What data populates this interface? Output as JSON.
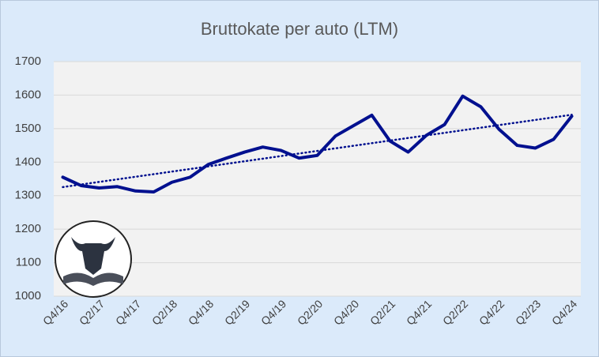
{
  "chart_data": {
    "type": "line",
    "title": "Bruttokate per auto (LTM)",
    "categories": [
      "Q4/16",
      null,
      "Q2/17",
      null,
      "Q4/17",
      null,
      "Q2/18",
      null,
      "Q4/18",
      null,
      "Q2/19",
      null,
      "Q4/19",
      null,
      "Q2/20",
      null,
      "Q4/20",
      null,
      "Q2/21",
      null,
      "Q4/21",
      null,
      "Q2/22",
      null,
      "Q4/22",
      null,
      "Q2/23",
      null,
      "Q4/24"
    ],
    "series": [
      {
        "name": "Bruttokate per auto",
        "color": "#00108f",
        "values": [
          1355,
          1330,
          1323,
          1327,
          1314,
          1311,
          1340,
          1355,
          1393,
          1412,
          1430,
          1445,
          1435,
          1412,
          1420,
          1478,
          1509,
          1540,
          1463,
          1430,
          1480,
          1512,
          1597,
          1565,
          1498,
          1450,
          1442,
          1468,
          1537
        ]
      }
    ],
    "ylim": [
      1000,
      1700
    ],
    "yticks": [
      1000,
      1100,
      1200,
      1300,
      1400,
      1500,
      1600,
      1700
    ],
    "grid": true,
    "trendline": "linear"
  }
}
